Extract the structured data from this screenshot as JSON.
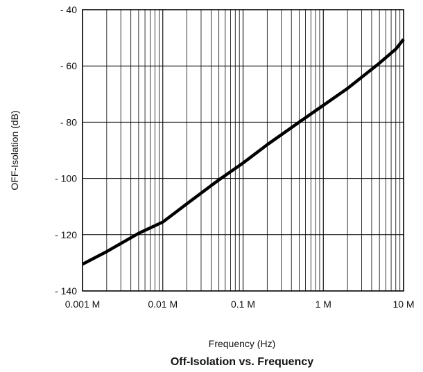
{
  "chart_data": {
    "type": "line",
    "title": "Off-Isolation vs. Frequency",
    "xlabel": "Frequency (Hz)",
    "ylabel": "OFF-Isolation (dB)",
    "xscale": "log",
    "xlim": [
      1000,
      10000000
    ],
    "ylim": [
      -140,
      -40
    ],
    "grid": true,
    "legend": "none",
    "x_tick_values": [
      1000,
      10000,
      100000,
      1000000,
      10000000
    ],
    "x_tick_labels": [
      "0.001 M",
      "0.01 M",
      "0.1 M",
      "1 M",
      "10 M"
    ],
    "y_tick_values": [
      -40,
      -60,
      -80,
      -100,
      -120,
      -140
    ],
    "y_tick_labels": [
      "- 40",
      "- 60",
      "- 80",
      "- 100",
      "- 120",
      "- 140"
    ],
    "series": [
      {
        "color": "#000000",
        "x": [
          1000,
          2000,
          5000,
          10000,
          20000,
          50000,
          100000,
          200000,
          500000,
          1000000,
          2000000,
          5000000,
          8000000,
          10000000
        ],
        "y": [
          -130.5,
          -126,
          -119.5,
          -115.5,
          -109,
          -100.5,
          -94.5,
          -88,
          -80,
          -74,
          -68,
          -59,
          -54,
          -50.5
        ]
      }
    ]
  }
}
